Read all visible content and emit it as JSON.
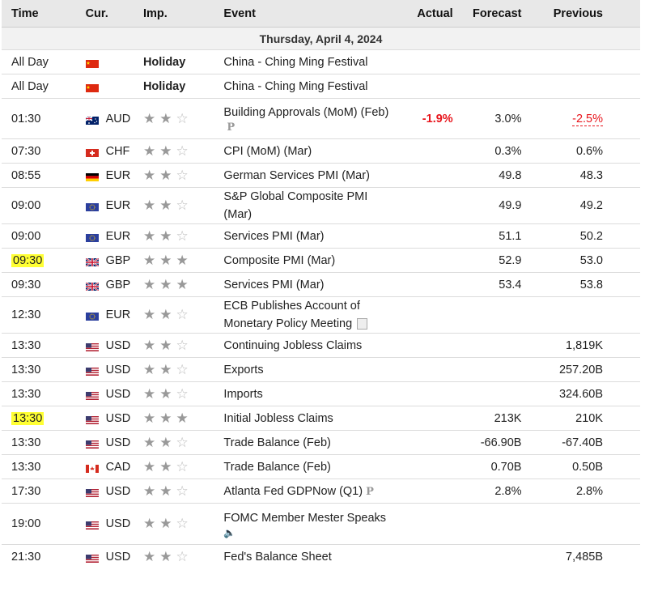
{
  "headers": {
    "time": "Time",
    "cur": "Cur.",
    "imp": "Imp.",
    "event": "Event",
    "actual": "Actual",
    "forecast": "Forecast",
    "previous": "Previous"
  },
  "date_label": "Thursday, April 4, 2024",
  "rows": [
    {
      "time": "All Day",
      "cur": "",
      "flag": "cn",
      "holiday": "Holiday",
      "event": "China - Ching Ming Festival",
      "actual": "",
      "forecast": "",
      "previous": ""
    },
    {
      "time": "All Day",
      "cur": "",
      "flag": "cn",
      "holiday": "Holiday",
      "event": "China - Ching Ming Festival",
      "actual": "",
      "forecast": "",
      "previous": ""
    },
    {
      "time": "01:30",
      "cur": "AUD",
      "flag": "au",
      "stars": 2,
      "event": "Building Approvals (MoM) (Feb)",
      "icon": "preliminary-icon",
      "actual": "-1.9%",
      "forecast": "3.0%",
      "previous": "-2.5%"
    },
    {
      "time": "07:30",
      "cur": "CHF",
      "flag": "ch",
      "stars": 2,
      "event": "CPI (MoM) (Mar)",
      "actual": "",
      "forecast": "0.3%",
      "previous": "0.6%"
    },
    {
      "time": "08:55",
      "cur": "EUR",
      "flag": "de",
      "stars": 2,
      "event": "German Services PMI (Mar)",
      "actual": "",
      "forecast": "49.8",
      "previous": "48.3"
    },
    {
      "time": "09:00",
      "cur": "EUR",
      "flag": "eu",
      "stars": 2,
      "event": "S&P Global Composite PMI (Mar)",
      "actual": "",
      "forecast": "49.9",
      "previous": "49.2"
    },
    {
      "time": "09:00",
      "cur": "EUR",
      "flag": "eu",
      "stars": 2,
      "event": "Services PMI (Mar)",
      "actual": "",
      "forecast": "51.1",
      "previous": "50.2"
    },
    {
      "time": "09:30",
      "cur": "GBP",
      "flag": "gb",
      "stars": 3,
      "highlight": true,
      "event": "Composite PMI (Mar)",
      "actual": "",
      "forecast": "52.9",
      "previous": "53.0"
    },
    {
      "time": "09:30",
      "cur": "GBP",
      "flag": "gb",
      "stars": 3,
      "event": "Services PMI (Mar)",
      "actual": "",
      "forecast": "53.4",
      "previous": "53.8"
    },
    {
      "time": "12:30",
      "cur": "EUR",
      "flag": "eu",
      "stars": 2,
      "event": "ECB Publishes Account of Monetary Policy Meeting",
      "icon": "document-icon",
      "actual": "",
      "forecast": "",
      "previous": ""
    },
    {
      "time": "13:30",
      "cur": "USD",
      "flag": "us",
      "stars": 2,
      "event": "Continuing Jobless Claims",
      "actual": "",
      "forecast": "",
      "previous": "1,819K"
    },
    {
      "time": "13:30",
      "cur": "USD",
      "flag": "us",
      "stars": 2,
      "event": "Exports",
      "actual": "",
      "forecast": "",
      "previous": "257.20B"
    },
    {
      "time": "13:30",
      "cur": "USD",
      "flag": "us",
      "stars": 2,
      "event": "Imports",
      "actual": "",
      "forecast": "",
      "previous": "324.60B"
    },
    {
      "time": "13:30",
      "cur": "USD",
      "flag": "us",
      "stars": 3,
      "highlight": true,
      "event": "Initial Jobless Claims",
      "actual": "",
      "forecast": "213K",
      "previous": "210K"
    },
    {
      "time": "13:30",
      "cur": "USD",
      "flag": "us",
      "stars": 2,
      "event": "Trade Balance (Feb)",
      "actual": "",
      "forecast": "-66.90B",
      "previous": "-67.40B"
    },
    {
      "time": "13:30",
      "cur": "CAD",
      "flag": "ca",
      "stars": 2,
      "event": "Trade Balance (Feb)",
      "actual": "",
      "forecast": "0.70B",
      "previous": "0.50B"
    },
    {
      "time": "17:30",
      "cur": "USD",
      "flag": "us",
      "stars": 2,
      "event": "Atlanta Fed GDPNow (Q1)",
      "icon": "preliminary-icon",
      "actual": "",
      "forecast": "2.8%",
      "previous": "2.8%"
    },
    {
      "time": "19:00",
      "cur": "USD",
      "flag": "us",
      "stars": 2,
      "event": "FOMC Member Mester Speaks",
      "icon": "speaker-icon",
      "actual": "",
      "forecast": "",
      "previous": ""
    },
    {
      "time": "21:30",
      "cur": "USD",
      "flag": "us",
      "stars": 2,
      "event": "Fed's Balance Sheet",
      "actual": "",
      "forecast": "",
      "previous": "7,485B"
    }
  ],
  "colors": {
    "negative": "#e8141b",
    "header_bg": "#e8e8e8",
    "highlight": "#ffff33"
  }
}
